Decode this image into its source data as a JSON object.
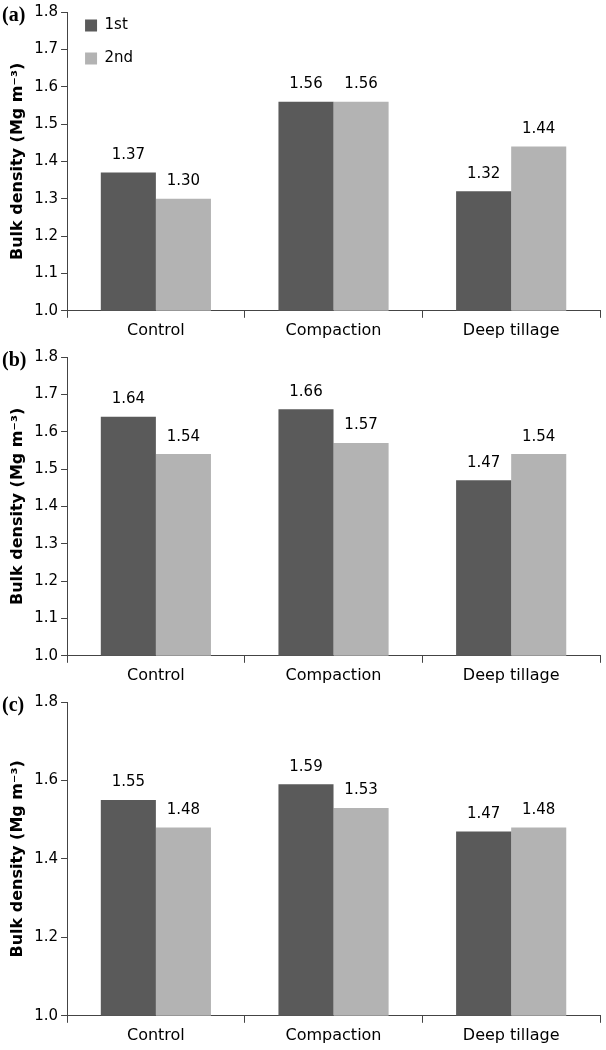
{
  "chart_data": [
    {
      "type": "bar",
      "title": "(a)",
      "ylabel": "Bulk density (Mg m⁻³)",
      "categories": [
        "Control",
        "Compaction",
        "Deep tillage"
      ],
      "ylim": [
        1.0,
        1.8
      ],
      "yticks": [
        {
          "value": 1.0,
          "label": "1.0"
        },
        {
          "value": 1.1,
          "label": "1.1"
        },
        {
          "value": 1.2,
          "label": "1.2"
        },
        {
          "value": 1.3,
          "label": "1.3"
        },
        {
          "value": 1.4,
          "label": "1.4"
        },
        {
          "value": 1.5,
          "label": "1.5"
        },
        {
          "value": 1.6,
          "label": "1.6"
        },
        {
          "value": 1.7,
          "label": "1.7"
        },
        {
          "value": 1.8,
          "label": "1.8"
        }
      ],
      "grid": false,
      "legend": "top left",
      "series": [
        {
          "name": "1st",
          "color": "#5a5a5a",
          "values": [
            1.37,
            1.56,
            1.32
          ],
          "value_labels": [
            "1.37",
            "1.56",
            "1.32"
          ]
        },
        {
          "name": "2nd",
          "color": "#b3b3b3",
          "values": [
            1.3,
            1.56,
            1.44
          ],
          "value_labels": [
            "1.30",
            "1.56",
            "1.44"
          ]
        }
      ]
    },
    {
      "type": "bar",
      "title": "(b)",
      "ylabel": "Bulk density (Mg m⁻³)",
      "categories": [
        "Control",
        "Compaction",
        "Deep tillage"
      ],
      "ylim": [
        1.0,
        1.8
      ],
      "yticks": [
        {
          "value": 1.0,
          "label": "1.0"
        },
        {
          "value": 1.1,
          "label": "1.1"
        },
        {
          "value": 1.2,
          "label": "1.2"
        },
        {
          "value": 1.3,
          "label": "1.3"
        },
        {
          "value": 1.4,
          "label": "1.4"
        },
        {
          "value": 1.5,
          "label": "1.5"
        },
        {
          "value": 1.6,
          "label": "1.6"
        },
        {
          "value": 1.7,
          "label": "1.7"
        },
        {
          "value": 1.8,
          "label": "1.8"
        }
      ],
      "grid": false,
      "series": [
        {
          "color": "#5a5a5a",
          "values": [
            1.64,
            1.66,
            1.47
          ],
          "value_labels": [
            "1.64",
            "1.66",
            "1.47"
          ]
        },
        {
          "color": "#b3b3b3",
          "values": [
            1.54,
            1.57,
            1.54
          ],
          "value_labels": [
            "1.54",
            "1.57",
            "1.54"
          ]
        }
      ]
    },
    {
      "type": "bar",
      "title": "(c)",
      "ylabel": "Bulk density (Mg m⁻³)",
      "categories": [
        "Control",
        "Compaction",
        "Deep tillage"
      ],
      "ylim": [
        1.0,
        1.8
      ],
      "yticks": [
        {
          "value": 1.0,
          "label": "1.0"
        },
        {
          "value": 1.2,
          "label": "1.2"
        },
        {
          "value": 1.4,
          "label": "1.4"
        },
        {
          "value": 1.6,
          "label": "1.6"
        },
        {
          "value": 1.8,
          "label": "1.8"
        }
      ],
      "grid": false,
      "series": [
        {
          "color": "#5a5a5a",
          "values": [
            1.55,
            1.59,
            1.47
          ],
          "value_labels": [
            "1.55",
            "1.59",
            "1.47"
          ]
        },
        {
          "color": "#b3b3b3",
          "values": [
            1.48,
            1.53,
            1.48
          ],
          "value_labels": [
            "1.48",
            "1.53",
            "1.48"
          ]
        }
      ]
    }
  ]
}
